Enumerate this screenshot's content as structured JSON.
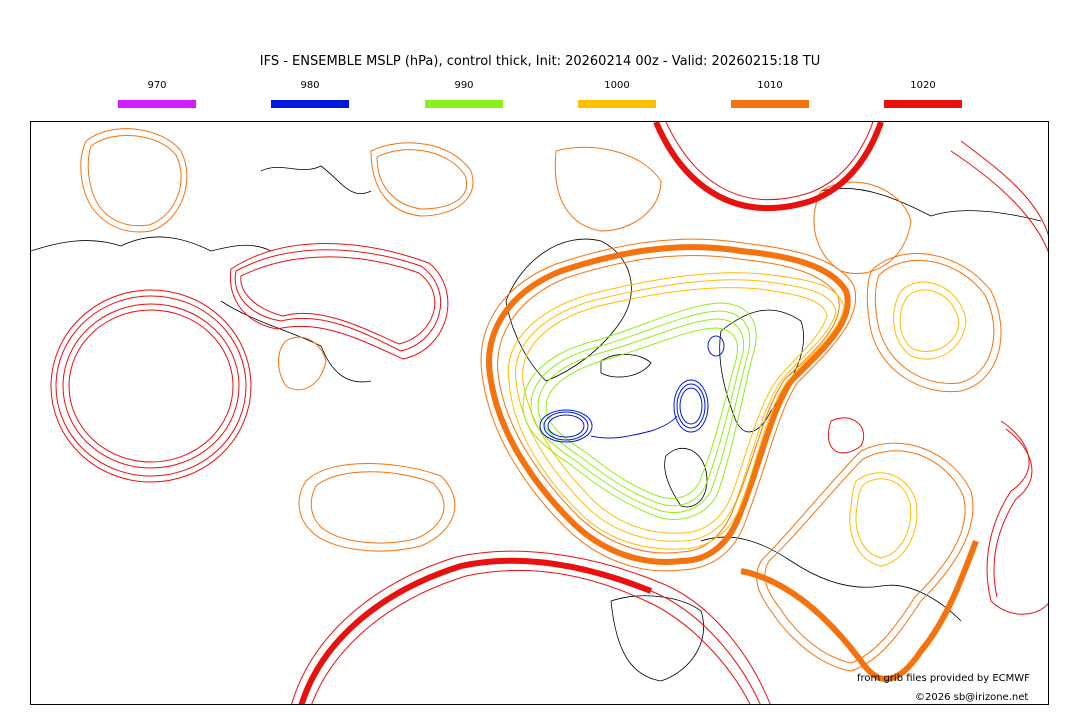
{
  "title": "IFS - ENSEMBLE MSLP (hPa), control thick, Init: 20260214 00z - Valid: 20260215:18 TU",
  "legend": [
    {
      "label": "970",
      "color": "#d21cff"
    },
    {
      "label": "980",
      "color": "#0018e0"
    },
    {
      "label": "990",
      "color": "#8cf01a"
    },
    {
      "label": "1000",
      "color": "#ffbe00"
    },
    {
      "label": "1010",
      "color": "#f5730f"
    },
    {
      "label": "1020",
      "color": "#e8110f"
    }
  ],
  "credits": {
    "source": "from grib files provided by ECMWF",
    "copyright": "©2026 sb@irizone.net"
  }
}
